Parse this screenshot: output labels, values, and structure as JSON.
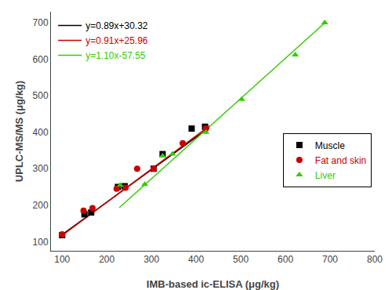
{
  "chart_data": {
    "type": "scatter",
    "xlabel": "IMB-based ic-ELISA (μg/kg)",
    "ylabel": "UPLC-MS/MS (μg/kg)",
    "xlim": [
      75,
      800
    ],
    "ylim": [
      75,
      730
    ],
    "xticks": [
      100,
      200,
      300,
      400,
      500,
      600,
      700,
      800
    ],
    "yticks": [
      100,
      200,
      300,
      400,
      500,
      600,
      700
    ],
    "grid": false,
    "legend": "center right",
    "series": [
      {
        "name": "y=0.89x+30.32",
        "type": "line",
        "color": "#000000",
        "x": [
          100,
          430
        ],
        "values": [
          119.32,
          413.02
        ]
      },
      {
        "name": "y=0.91x+25.96",
        "type": "line",
        "color": "#cc0000",
        "x": [
          100,
          430
        ],
        "values": [
          116.96,
          417.26
        ]
      },
      {
        "name": "y=1.10x-57.55",
        "type": "line",
        "color": "#33cc00",
        "x": [
          228,
          690
        ],
        "values": [
          193.25,
          701.45
        ]
      },
      {
        "name": "Muscle",
        "type": "scatter",
        "color": "#000000",
        "marker": "square",
        "x": [
          100,
          150,
          165,
          225,
          240,
          305,
          325,
          390,
          420
        ],
        "values": [
          118,
          175,
          180,
          250,
          252,
          300,
          340,
          410,
          415
        ]
      },
      {
        "name": "Fat and skin",
        "type": "scatter",
        "color": "#cc0000",
        "marker": "circle",
        "x": [
          100,
          148,
          168,
          222,
          242,
          268,
          305,
          370,
          422
        ],
        "values": [
          120,
          185,
          192,
          245,
          248,
          300,
          300,
          370,
          410
        ]
      },
      {
        "name": "Liver",
        "type": "scatter",
        "color": "#33cc00",
        "marker": "triangle-up",
        "x": [
          230,
          285,
          325,
          347,
          422,
          502,
          622,
          688
        ],
        "values": [
          255,
          257,
          335,
          340,
          400,
          490,
          612,
          700
        ]
      }
    ]
  }
}
